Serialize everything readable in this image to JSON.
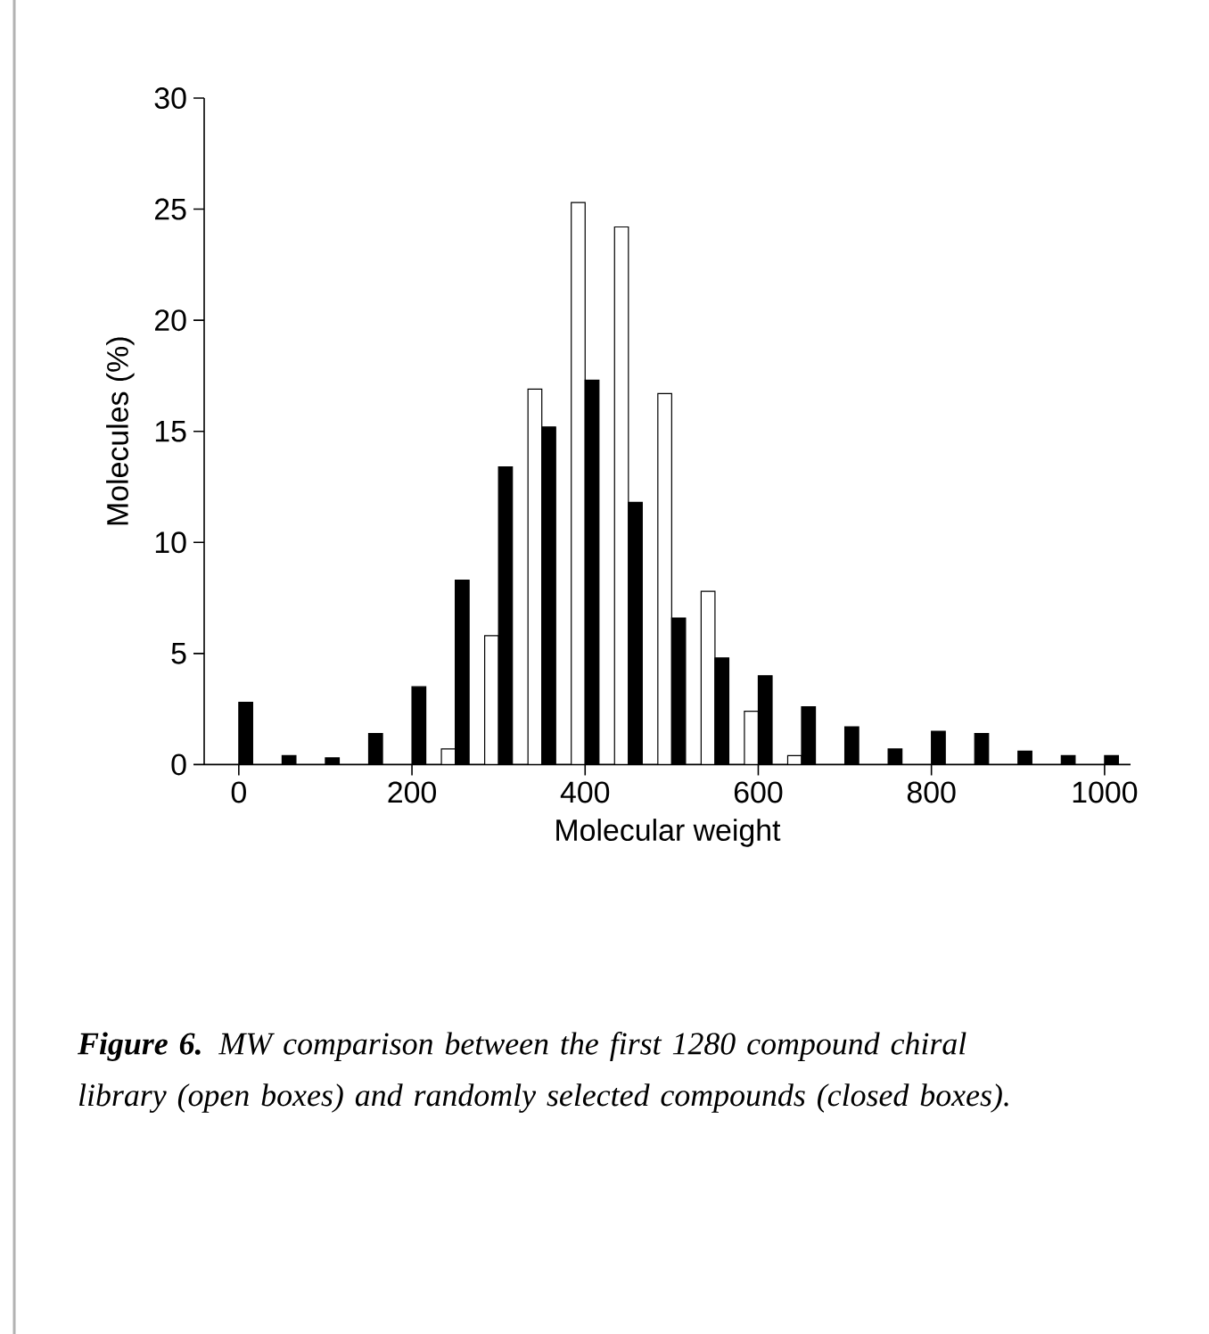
{
  "chart_data": {
    "type": "bar",
    "xlabel": "Molecular weight",
    "ylabel": "Molecules (%)",
    "x": [
      0,
      50,
      100,
      150,
      200,
      250,
      300,
      350,
      400,
      450,
      500,
      550,
      600,
      650,
      700,
      750,
      800,
      850,
      900,
      950,
      1000
    ],
    "series": [
      {
        "color": "#ffffff",
        "values": [
          null,
          null,
          null,
          null,
          null,
          0.7,
          5.8,
          16.9,
          25.3,
          24.2,
          16.7,
          7.8,
          2.4,
          0.4,
          null,
          null,
          null,
          null,
          null,
          null,
          null
        ]
      },
      {
        "color": "#000000",
        "values": [
          2.8,
          0.4,
          0.3,
          1.4,
          3.5,
          8.3,
          13.4,
          15.2,
          17.3,
          11.8,
          6.6,
          4.8,
          4.0,
          2.6,
          1.7,
          0.7,
          1.5,
          1.4,
          0.6,
          0.4,
          0.4
        ]
      }
    ],
    "xlim": [
      -40,
      1030
    ],
    "ylim": [
      0,
      30
    ],
    "xticks": [
      0,
      200,
      400,
      600,
      800,
      1000
    ],
    "yticks": [
      0,
      5,
      10,
      15,
      20,
      25,
      30
    ],
    "annotations": [
      "**Figure 6.** MW comparison between the first 1280 compound chiral library (open boxes) and randomly selected compounds (closed boxes)."
    ]
  }
}
